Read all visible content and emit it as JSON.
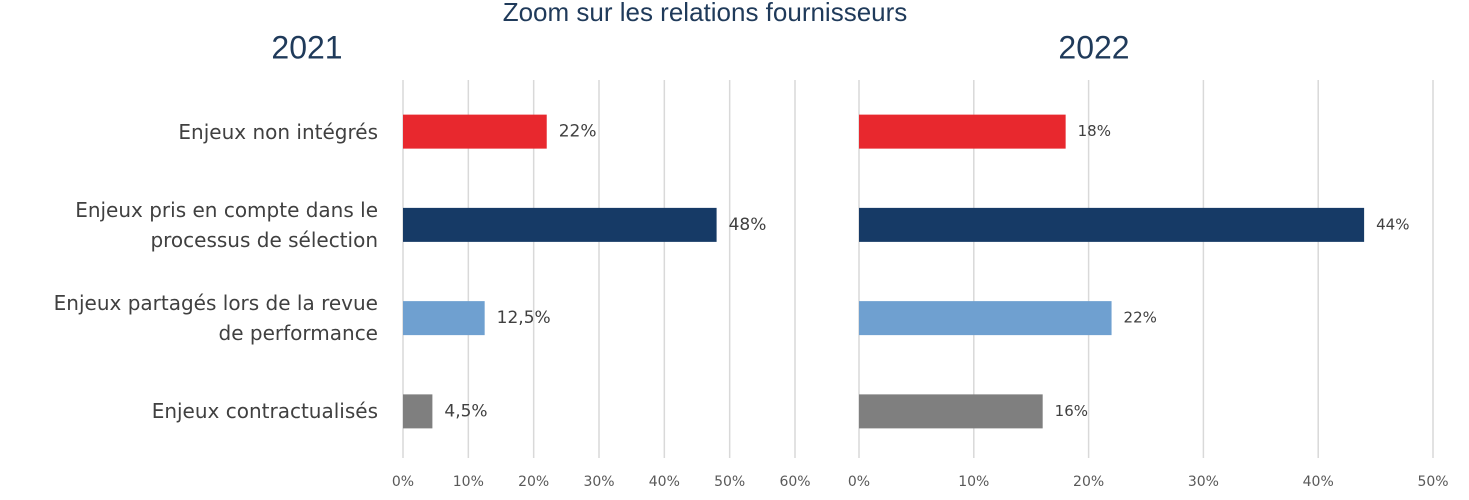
{
  "title": "Zoom sur les relations fournisseurs",
  "chart_data": [
    {
      "type": "hbar",
      "title": "2021",
      "categories": [
        "Enjeux non intégrés",
        "Enjeux pris en compte dans le processus de sélection",
        "Enjeux partagés lors de la revue de performance",
        "Enjeux contractualisés"
      ],
      "values": [
        22,
        48,
        12.5,
        4.5
      ],
      "value_labels": [
        "22%",
        "48%",
        "12,5%",
        "4,5%"
      ],
      "colors": [
        "#e8282e",
        "#163a66",
        "#6fa0d0",
        "#7f7f7f"
      ],
      "xlim": [
        0,
        60
      ],
      "xticks": [
        {
          "value": 0,
          "label": "0%"
        },
        {
          "value": 10,
          "label": "10%"
        },
        {
          "value": 20,
          "label": "20%"
        },
        {
          "value": 30,
          "label": "30%"
        },
        {
          "value": 40,
          "label": "40%"
        },
        {
          "value": 50,
          "label": "50%"
        },
        {
          "value": 60,
          "label": "60%"
        }
      ],
      "grid": true
    },
    {
      "type": "hbar",
      "title": "2022",
      "values": [
        18,
        44,
        22,
        16
      ],
      "value_labels": [
        "18%",
        "44%",
        "22%",
        "16%"
      ],
      "colors": [
        "#e8282e",
        "#163a66",
        "#6fa0d0",
        "#7f7f7f"
      ],
      "xlim": [
        0,
        50
      ],
      "xticks": [
        {
          "value": 0,
          "label": "0%"
        },
        {
          "value": 10,
          "label": "10%"
        },
        {
          "value": 20,
          "label": "20%"
        },
        {
          "value": 30,
          "label": "30%"
        },
        {
          "value": 40,
          "label": "40%"
        },
        {
          "value": 50,
          "label": "50%"
        }
      ],
      "grid": true
    }
  ]
}
